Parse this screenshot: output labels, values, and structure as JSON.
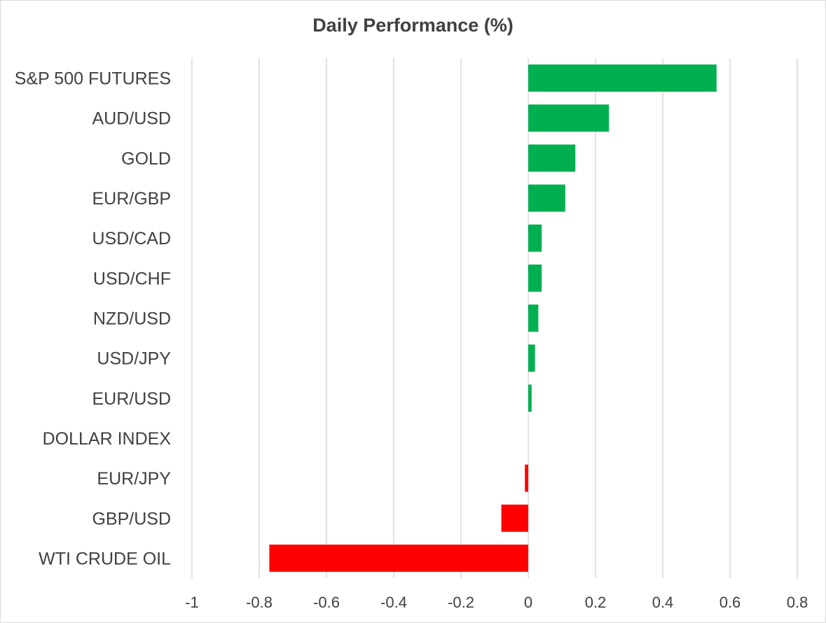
{
  "chart_data": {
    "type": "bar",
    "orientation": "horizontal",
    "title": "Daily Performance (%)",
    "xlabel": "",
    "ylabel": "",
    "categories": [
      "S&P 500 FUTURES",
      "AUD/USD",
      "GOLD",
      "EUR/GBP",
      "USD/CAD",
      "USD/CHF",
      "NZD/USD",
      "USD/JPY",
      "EUR/USD",
      "DOLLAR INDEX",
      "EUR/JPY",
      "GBP/USD",
      "WTI CRUDE OIL"
    ],
    "values": [
      0.56,
      0.24,
      0.14,
      0.11,
      0.04,
      0.04,
      0.03,
      0.02,
      0.01,
      0.0,
      -0.01,
      -0.08,
      -0.77
    ],
    "xlim": [
      -1,
      0.8
    ],
    "xticks": [
      -1,
      -0.8,
      -0.6,
      -0.4,
      -0.2,
      0,
      0.2,
      0.4,
      0.6,
      0.8
    ],
    "xtick_labels": [
      "-1",
      "-0.8",
      "-0.6",
      "-0.4",
      "-0.2",
      "0",
      "0.2",
      "0.4",
      "0.6",
      "0.8"
    ],
    "grid": "vertical",
    "legend": "none",
    "colors": {
      "positive": "#00b050",
      "negative": "#ff0000",
      "grid": "#d9d9d9",
      "text": "#404040"
    }
  }
}
